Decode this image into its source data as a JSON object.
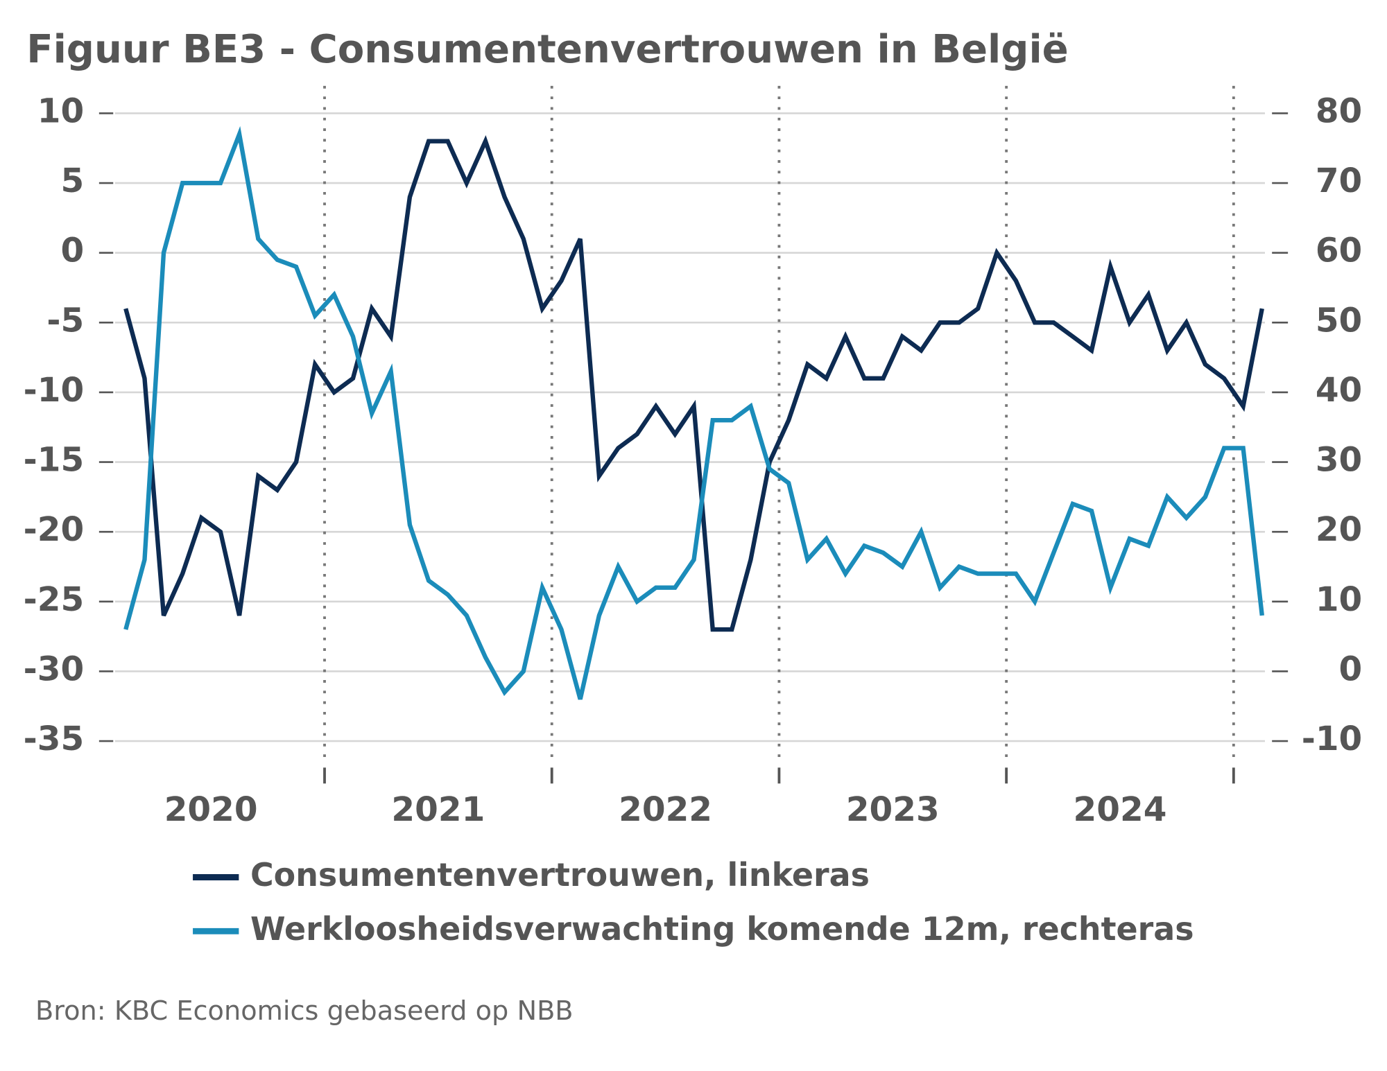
{
  "chart_data": {
    "type": "line",
    "title": "Figuur BE3 - Consumentenvertrouwen in België",
    "source": "Bron: KBC Economics gebaseerd op NBB",
    "x": [
      2020.125,
      2020.208,
      2020.292,
      2020.375,
      2020.458,
      2020.542,
      2020.625,
      2020.708,
      2020.792,
      2020.875,
      2020.958,
      2021.042,
      2021.125,
      2021.208,
      2021.292,
      2021.375,
      2021.458,
      2021.542,
      2021.625,
      2021.708,
      2021.792,
      2021.875,
      2021.958,
      2022.042,
      2022.125,
      2022.208,
      2022.292,
      2022.375,
      2022.458,
      2022.542,
      2022.625,
      2022.708,
      2022.792,
      2022.875,
      2022.958,
      2023.042,
      2023.125,
      2023.208,
      2023.292,
      2023.375,
      2023.458,
      2023.542,
      2023.625,
      2023.708,
      2023.792,
      2023.875,
      2023.958,
      2024.042,
      2024.125,
      2024.208,
      2024.292,
      2024.375,
      2024.458,
      2024.542,
      2024.625,
      2024.708,
      2024.792,
      2024.875,
      2024.958,
      2025.042,
      2025.125
    ],
    "xlim": [
      2020,
      2025.2
    ],
    "xticks": [
      {
        "value": 2020.5,
        "label": "2020"
      },
      {
        "value": 2021.5,
        "label": "2021"
      },
      {
        "value": 2022.5,
        "label": "2022"
      },
      {
        "value": 2023.5,
        "label": "2023"
      },
      {
        "value": 2024.5,
        "label": "2024"
      }
    ],
    "year_separators": [
      2021,
      2022,
      2023,
      2024,
      2025
    ],
    "ylim": [
      -35,
      10
    ],
    "yticks": [
      10,
      5,
      0,
      -5,
      -10,
      -15,
      -20,
      -25,
      -30,
      -35
    ],
    "y2lim": [
      -10,
      80
    ],
    "y2ticks": [
      80,
      70,
      60,
      50,
      40,
      30,
      20,
      10,
      0,
      -10
    ],
    "grid": true,
    "series": [
      {
        "name": "Consumentenvertrouwen, linkeras",
        "color": "#0d2b52",
        "values": [
          -4,
          -9,
          -26,
          -23,
          -19,
          -20,
          -26,
          -16,
          -17,
          -15,
          -8,
          -10,
          -9,
          -4,
          -6,
          4,
          8,
          8,
          5,
          8,
          4,
          1,
          -4,
          -2,
          1,
          -16,
          -14,
          -13,
          -11,
          -13,
          -11,
          -27,
          -27,
          -22,
          -15,
          -12,
          -8,
          -9,
          -6,
          -9,
          -9,
          -6,
          -7,
          -5,
          -5,
          -4,
          0,
          -2,
          -5,
          -5,
          -6,
          -7,
          -1,
          -5,
          -3,
          -7,
          -5,
          -8,
          -9,
          -11,
          -4
        ]
      },
      {
        "name": "Werkloosheidsverwachting komende 12m, rechteras",
        "color": "#1b8cba",
        "axis": "y2",
        "values": [
          6,
          16,
          60,
          70,
          70,
          70,
          77,
          62,
          59,
          58,
          51,
          54,
          48,
          37,
          43,
          21,
          13,
          11,
          8,
          2,
          -3,
          0,
          12,
          6,
          -4,
          8,
          15,
          10,
          12,
          12,
          16,
          36,
          36,
          38,
          29,
          27,
          16,
          19,
          14,
          18,
          17,
          15,
          20,
          12,
          15,
          14,
          14,
          14,
          10,
          17,
          24,
          23,
          12,
          19,
          18,
          25,
          22,
          25,
          32,
          32,
          8
        ]
      }
    ]
  }
}
